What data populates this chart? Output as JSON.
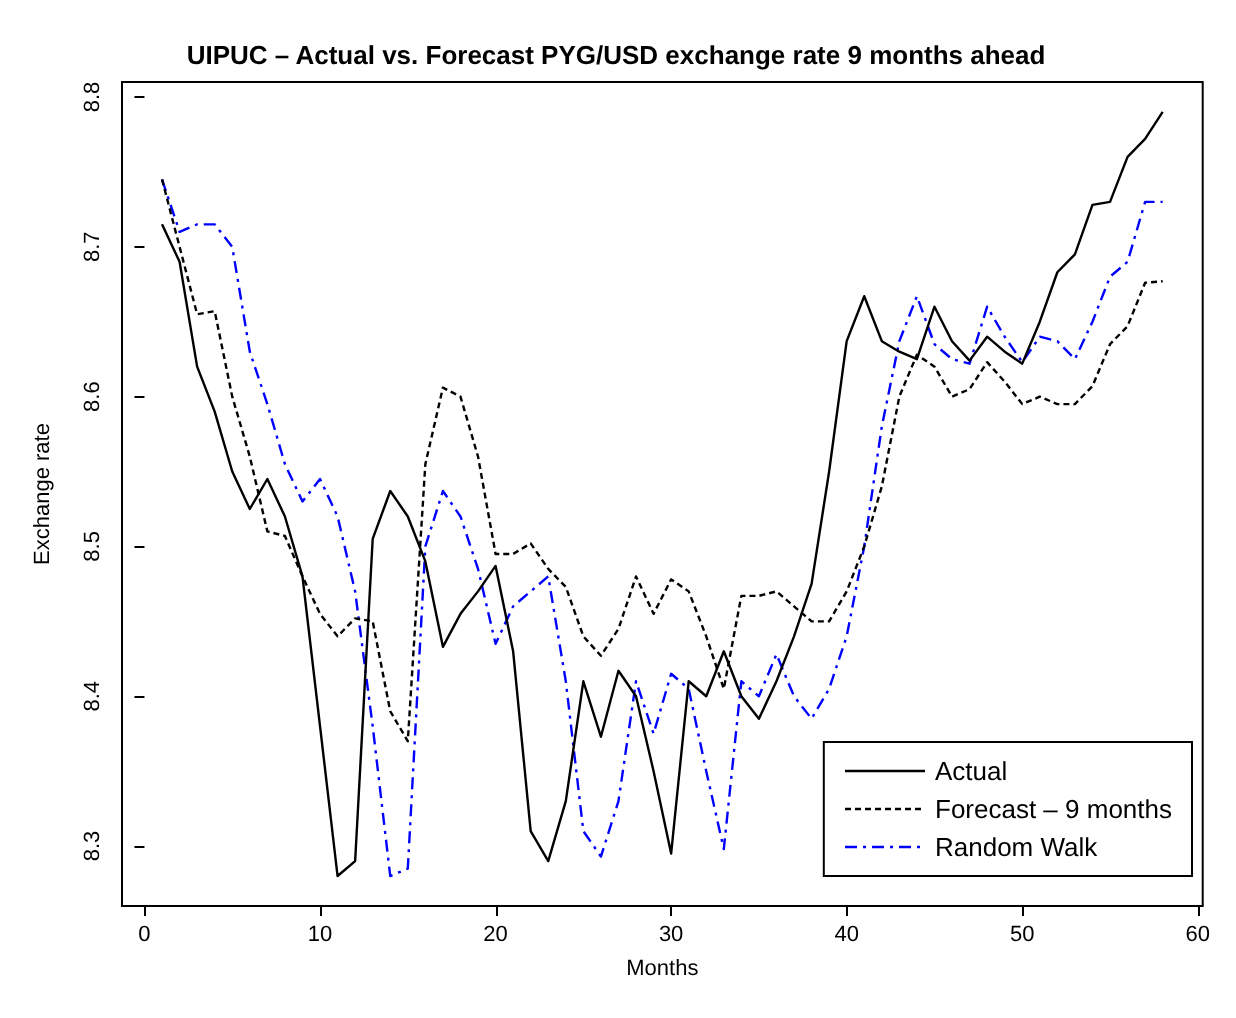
{
  "chart_data": {
    "type": "line",
    "title": "UIPUC – Actual vs. Forecast PYG/USD exchange rate 9 months ahead",
    "xlabel": "Months",
    "ylabel": "Exchange rate",
    "x": [
      1,
      2,
      3,
      4,
      5,
      6,
      7,
      8,
      9,
      10,
      11,
      12,
      13,
      14,
      15,
      16,
      17,
      18,
      19,
      20,
      21,
      22,
      23,
      24,
      25,
      26,
      27,
      28,
      29,
      30,
      31,
      32,
      33,
      34,
      35,
      36,
      37,
      38,
      39,
      40,
      41,
      42,
      43,
      44,
      45,
      46,
      47,
      48,
      49,
      50,
      51,
      52,
      53,
      54,
      55,
      56,
      57,
      58
    ],
    "series": [
      {
        "name": "Actual",
        "color": "#000000",
        "line_style": "solid",
        "values": [
          8.715,
          8.69,
          8.62,
          8.59,
          8.55,
          8.525,
          8.545,
          8.52,
          8.48,
          8.38,
          8.28,
          8.29,
          8.505,
          8.537,
          8.52,
          8.49,
          8.433,
          8.455,
          8.47,
          8.487,
          8.43,
          8.31,
          8.29,
          8.33,
          8.41,
          8.373,
          8.417,
          8.4,
          8.35,
          8.295,
          8.41,
          8.4,
          8.43,
          8.4,
          8.385,
          8.41,
          8.44,
          8.475,
          8.55,
          8.637,
          8.667,
          8.637,
          8.63,
          8.625,
          8.66,
          8.637,
          8.624,
          8.64,
          8.63,
          8.622,
          8.65,
          8.683,
          8.695,
          8.728,
          8.73,
          8.76,
          8.772,
          8.79
        ]
      },
      {
        "name": "Forecast – 9 months",
        "color": "#000000",
        "line_style": "dashed",
        "values": [
          8.745,
          8.7,
          8.655,
          8.657,
          8.6,
          8.56,
          8.51,
          8.507,
          8.48,
          8.455,
          8.44,
          8.452,
          8.45,
          8.39,
          8.37,
          8.555,
          8.606,
          8.6,
          8.56,
          8.495,
          8.495,
          8.502,
          8.485,
          8.473,
          8.44,
          8.427,
          8.445,
          8.48,
          8.455,
          8.478,
          8.47,
          8.44,
          8.405,
          8.467,
          8.467,
          8.47,
          8.46,
          8.45,
          8.45,
          8.47,
          8.5,
          8.54,
          8.6,
          8.628,
          8.62,
          8.6,
          8.605,
          8.623,
          8.61,
          8.595,
          8.6,
          8.595,
          8.595,
          8.607,
          8.635,
          8.647,
          8.676,
          8.677
        ]
      },
      {
        "name": "Random Walk",
        "color": "#0000ff",
        "line_style": "dotted",
        "values": [
          8.745,
          8.71,
          8.715,
          8.715,
          8.7,
          8.63,
          8.595,
          8.555,
          8.53,
          8.545,
          8.52,
          8.47,
          8.38,
          8.28,
          8.285,
          8.5,
          8.537,
          8.52,
          8.485,
          8.435,
          8.46,
          8.47,
          8.48,
          8.41,
          8.31,
          8.293,
          8.33,
          8.41,
          8.375,
          8.415,
          8.405,
          8.35,
          8.298,
          8.41,
          8.4,
          8.428,
          8.4,
          8.385,
          8.405,
          8.44,
          8.5,
          8.58,
          8.637,
          8.667,
          8.635,
          8.625,
          8.622,
          8.66,
          8.64,
          8.623,
          8.64,
          8.637,
          8.625,
          8.65,
          8.68,
          8.69,
          8.73,
          8.73
        ]
      }
    ],
    "xlim": [
      -1.28,
      60.28
    ],
    "xticks": [
      0,
      10,
      20,
      30,
      40,
      50,
      60
    ],
    "ylim": [
      8.26,
      8.81
    ],
    "yticks": [
      8.3,
      8.4,
      8.5,
      8.6,
      8.7,
      8.8
    ],
    "grid": false,
    "legend": "bottom right",
    "marker": "none"
  }
}
